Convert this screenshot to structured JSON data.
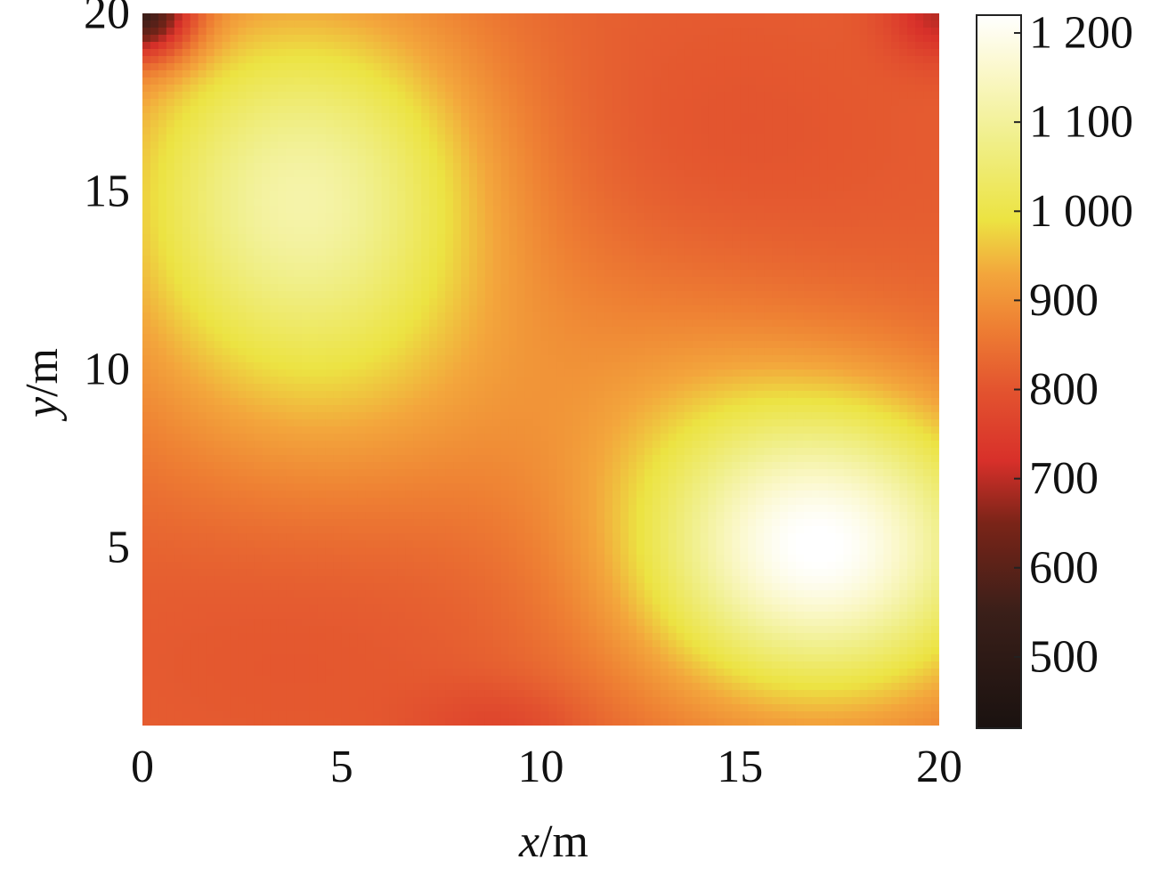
{
  "chart_data": {
    "type": "heatmap",
    "title": "",
    "xlabel": {
      "variable": "x",
      "unit": "/m"
    },
    "ylabel": {
      "variable": "y",
      "unit": "/m"
    },
    "xlim": [
      0,
      20
    ],
    "ylim": [
      0,
      20
    ],
    "x_ticks": [
      {
        "value": 0,
        "label": "0"
      },
      {
        "value": 5,
        "label": "5"
      },
      {
        "value": 10,
        "label": "10"
      },
      {
        "value": 15,
        "label": "15"
      },
      {
        "value": 20,
        "label": "20"
      }
    ],
    "y_ticks": [
      {
        "value": 5,
        "label": "5"
      },
      {
        "value": 10,
        "label": "10"
      },
      {
        "value": 15,
        "label": "15"
      },
      {
        "value": 20,
        "label": "20"
      }
    ],
    "colorbar": {
      "range": [
        420,
        1220
      ],
      "ticks": [
        {
          "value": 500,
          "label": "500"
        },
        {
          "value": 600,
          "label": "600"
        },
        {
          "value": 700,
          "label": "700"
        },
        {
          "value": 800,
          "label": "800"
        },
        {
          "value": 900,
          "label": "900"
        },
        {
          "value": 1000,
          "label": "1 000"
        },
        {
          "value": 1100,
          "label": "1 100"
        },
        {
          "value": 1200,
          "label": "1 200"
        }
      ],
      "colormap": [
        {
          "value": 420,
          "color": "#1a1210"
        },
        {
          "value": 550,
          "color": "#3a1f19"
        },
        {
          "value": 650,
          "color": "#7a2418"
        },
        {
          "value": 720,
          "color": "#d8302a"
        },
        {
          "value": 800,
          "color": "#e3542f"
        },
        {
          "value": 870,
          "color": "#ee7f33"
        },
        {
          "value": 930,
          "color": "#f3a63c"
        },
        {
          "value": 990,
          "color": "#ece342"
        },
        {
          "value": 1080,
          "color": "#f0ef8a"
        },
        {
          "value": 1160,
          "color": "#fbf8cc"
        },
        {
          "value": 1220,
          "color": "#ffffff"
        }
      ]
    },
    "field": {
      "base": 820,
      "features": [
        {
          "x": 4,
          "y": 15,
          "amplitude": 290,
          "sigma_x": 3.4,
          "sigma_y": 3.7
        },
        {
          "x": 17,
          "y": 5,
          "amplitude": 400,
          "sigma_x": 3.3,
          "sigma_y": 3.0
        },
        {
          "x": 5,
          "y": 9,
          "amplitude": 60,
          "sigma_x": 4.0,
          "sigma_y": 3.0
        },
        {
          "x": 13,
          "y": 10,
          "amplitude": 40,
          "sigma_x": 3.0,
          "sigma_y": 3.0
        },
        {
          "x": 14,
          "y": 16,
          "amplitude": -25,
          "sigma_x": 4.0,
          "sigma_y": 3.0
        },
        {
          "x": 4,
          "y": 3,
          "amplitude": -20,
          "sigma_x": 4.0,
          "sigma_y": 3.0
        },
        {
          "x": 0,
          "y": 20,
          "amplitude": -330,
          "sigma_x": 0.9,
          "sigma_y": 0.9
        },
        {
          "x": 20,
          "y": 20,
          "amplitude": -120,
          "sigma_x": 0.9,
          "sigma_y": 0.9
        },
        {
          "x": 9,
          "y": 0,
          "amplitude": -50,
          "sigma_x": 1.5,
          "sigma_y": 0.8
        }
      ]
    }
  }
}
